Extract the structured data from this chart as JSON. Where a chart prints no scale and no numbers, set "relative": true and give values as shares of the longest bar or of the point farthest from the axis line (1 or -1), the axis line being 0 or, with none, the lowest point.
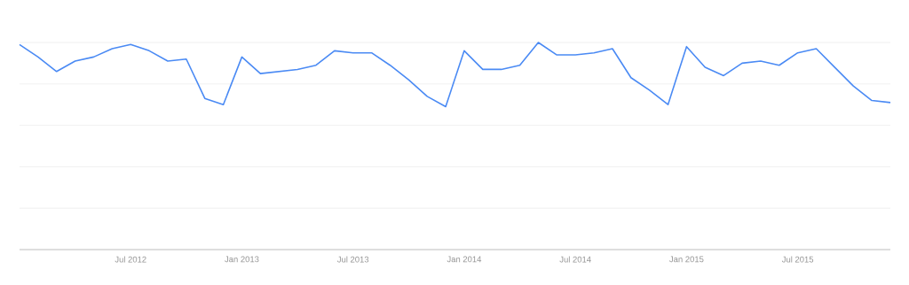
{
  "chart_data": {
    "type": "line",
    "relative": true,
    "grid": "y",
    "x": [
      "2012-01",
      "2012-02",
      "2012-03",
      "2012-04",
      "2012-05",
      "2012-06",
      "2012-07",
      "2012-08",
      "2012-09",
      "2012-10",
      "2012-11",
      "2012-12",
      "2013-01",
      "2013-02",
      "2013-03",
      "2013-04",
      "2013-05",
      "2013-06",
      "2013-07",
      "2013-08",
      "2013-09",
      "2013-10",
      "2013-11",
      "2013-12",
      "2014-01",
      "2014-02",
      "2014-03",
      "2014-04",
      "2014-05",
      "2014-06",
      "2014-07",
      "2014-08",
      "2014-09",
      "2014-10",
      "2014-11",
      "2014-12",
      "2015-01",
      "2015-02",
      "2015-03",
      "2015-04",
      "2015-05",
      "2015-06",
      "2015-07",
      "2015-08",
      "2015-09",
      "2015-10",
      "2015-11",
      "2015-12"
    ],
    "series": [
      {
        "color": "#4a8af4",
        "values": [
          0.99,
          0.93,
          0.86,
          0.91,
          0.93,
          0.97,
          0.99,
          0.96,
          0.91,
          0.92,
          0.73,
          0.7,
          0.93,
          0.85,
          0.86,
          0.87,
          0.89,
          0.96,
          0.95,
          0.95,
          0.89,
          0.82,
          0.74,
          0.69,
          0.96,
          0.87,
          0.87,
          0.89,
          1,
          0.94,
          0.94,
          0.95,
          0.97,
          0.83,
          0.77,
          0.7,
          0.98,
          0.88,
          0.84,
          0.9,
          0.91,
          0.89,
          0.95,
          0.97,
          0.88,
          0.79,
          0.72,
          0.71
        ]
      }
    ],
    "xlim": [
      "2012-01",
      "2015-12"
    ],
    "xticks": [
      {
        "value": "2012-07",
        "label": "Jul 2012"
      },
      {
        "value": "2013-01",
        "label": "Jan 2013"
      },
      {
        "value": "2013-07",
        "label": "Jul 2013"
      },
      {
        "value": "2014-01",
        "label": "Jan 2014"
      },
      {
        "value": "2014-07",
        "label": "Jul 2014"
      },
      {
        "value": "2015-01",
        "label": "Jan 2015"
      },
      {
        "value": "2015-07",
        "label": "Jul 2015"
      }
    ]
  }
}
